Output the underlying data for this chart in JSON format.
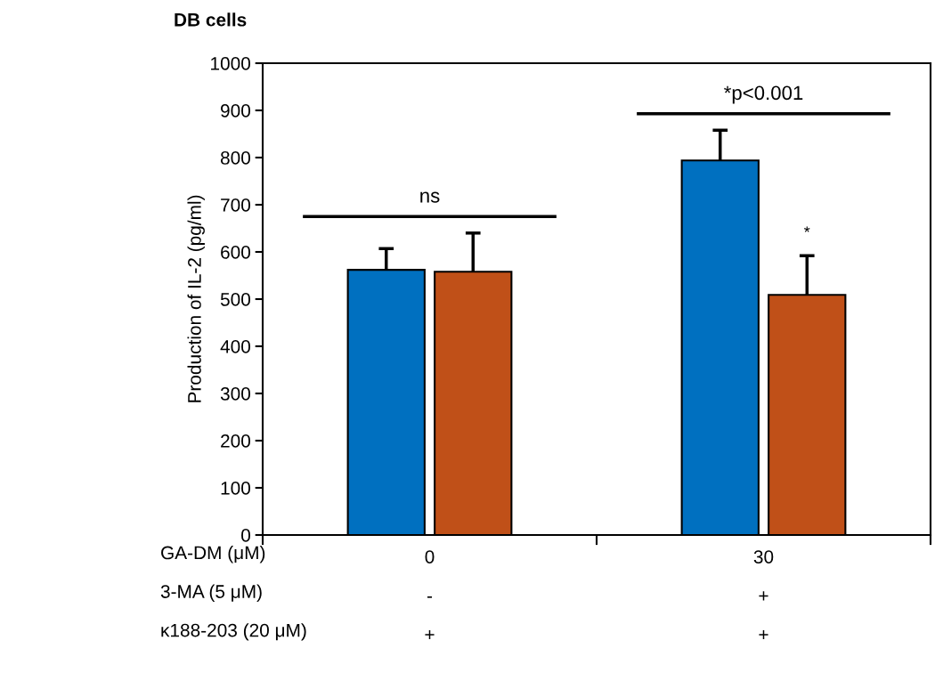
{
  "chart_data": {
    "type": "bar",
    "title": "DB cells",
    "ylabel": "Production of IL-2 (pg/ml)",
    "xlabel": "GA-DM (μM)\n3-MA (5 μM)\nκ188-203 (20 μM)",
    "categories": [
      "0\n-\n+",
      "30\n+\n+"
    ],
    "series": [
      {
        "color": "#0070c0",
        "values": [
          562,
          794
        ],
        "errors": [
          45,
          64
        ]
      },
      {
        "color": "#c05018",
        "values": [
          558,
          509
        ],
        "errors": [
          82,
          83
        ]
      }
    ],
    "ylim": [
      0,
      1000
    ],
    "yticks": [
      0,
      100,
      200,
      300,
      400,
      500,
      600,
      700,
      800,
      900,
      1000
    ],
    "annotations": [
      "ns",
      "*p<0.001",
      "*"
    ],
    "grid": false,
    "legend": false
  }
}
